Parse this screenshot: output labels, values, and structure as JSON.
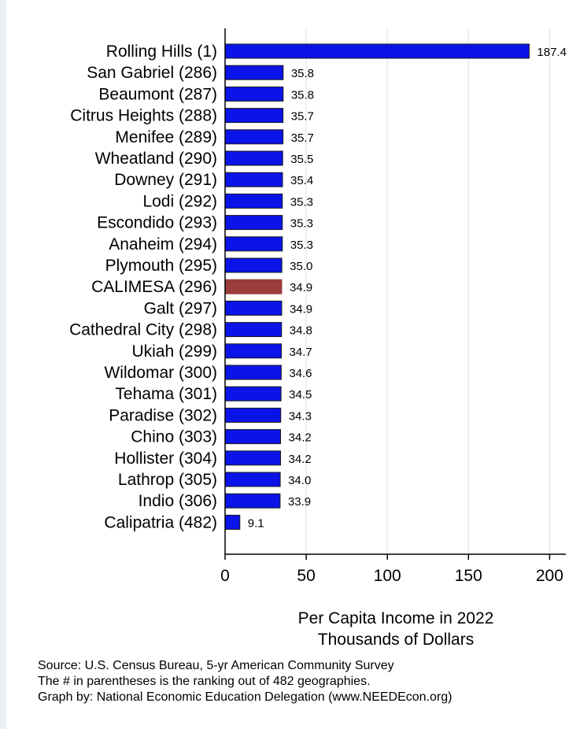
{
  "chart_data": {
    "type": "bar",
    "orientation": "horizontal",
    "categories": [
      "Rolling Hills  (1)",
      "San Gabriel (286)",
      "Beaumont (287)",
      "Citrus Heights (288)",
      "Menifee (289)",
      "Wheatland (290)",
      "Downey (291)",
      "Lodi (292)",
      "Escondido (293)",
      "Anaheim (294)",
      "Plymouth (295)",
      "CALIMESA (296)",
      "Galt (297)",
      "Cathedral City (298)",
      "Ukiah (299)",
      "Wildomar (300)",
      "Tehama (301)",
      "Paradise (302)",
      "Chino (303)",
      "Hollister (304)",
      "Lathrop (305)",
      "Indio (306)",
      "Calipatria (482)"
    ],
    "values": [
      187.4,
      35.8,
      35.8,
      35.7,
      35.7,
      35.5,
      35.4,
      35.3,
      35.3,
      35.3,
      35.0,
      34.9,
      34.9,
      34.8,
      34.7,
      34.6,
      34.5,
      34.3,
      34.2,
      34.2,
      34.0,
      33.9,
      9.1
    ],
    "value_labels": [
      "187.4",
      "35.8",
      "35.8",
      "35.7",
      "35.7",
      "35.5",
      "35.4",
      "35.3",
      "35.3",
      "35.3",
      "35.0",
      "34.9",
      "34.9",
      "34.8",
      "34.7",
      "34.6",
      "34.5",
      "34.3",
      "34.2",
      "34.2",
      "34.0",
      "33.9",
      "9.1"
    ],
    "highlight_category": "CALIMESA (296)",
    "xlim": [
      0,
      210
    ],
    "xticks": [
      0,
      50,
      100,
      150,
      200
    ],
    "xlabel_lines": [
      "Per Capita Income in 2022",
      "Thousands of Dollars"
    ],
    "grid": "vertical",
    "colors": {
      "bar": "#0a14e8",
      "highlight": "#9b3d3d",
      "grid": "#e4ecef",
      "bar_edge": "#1a1a1a"
    }
  },
  "footer": {
    "source": "Source: U.S. Census Bureau, 5-yr American Community Survey",
    "note": "The # in parentheses is the ranking out of 482 geographies.",
    "credit": "Graph by: National Economic Education Delegation (www.NEEDEcon.org)"
  }
}
